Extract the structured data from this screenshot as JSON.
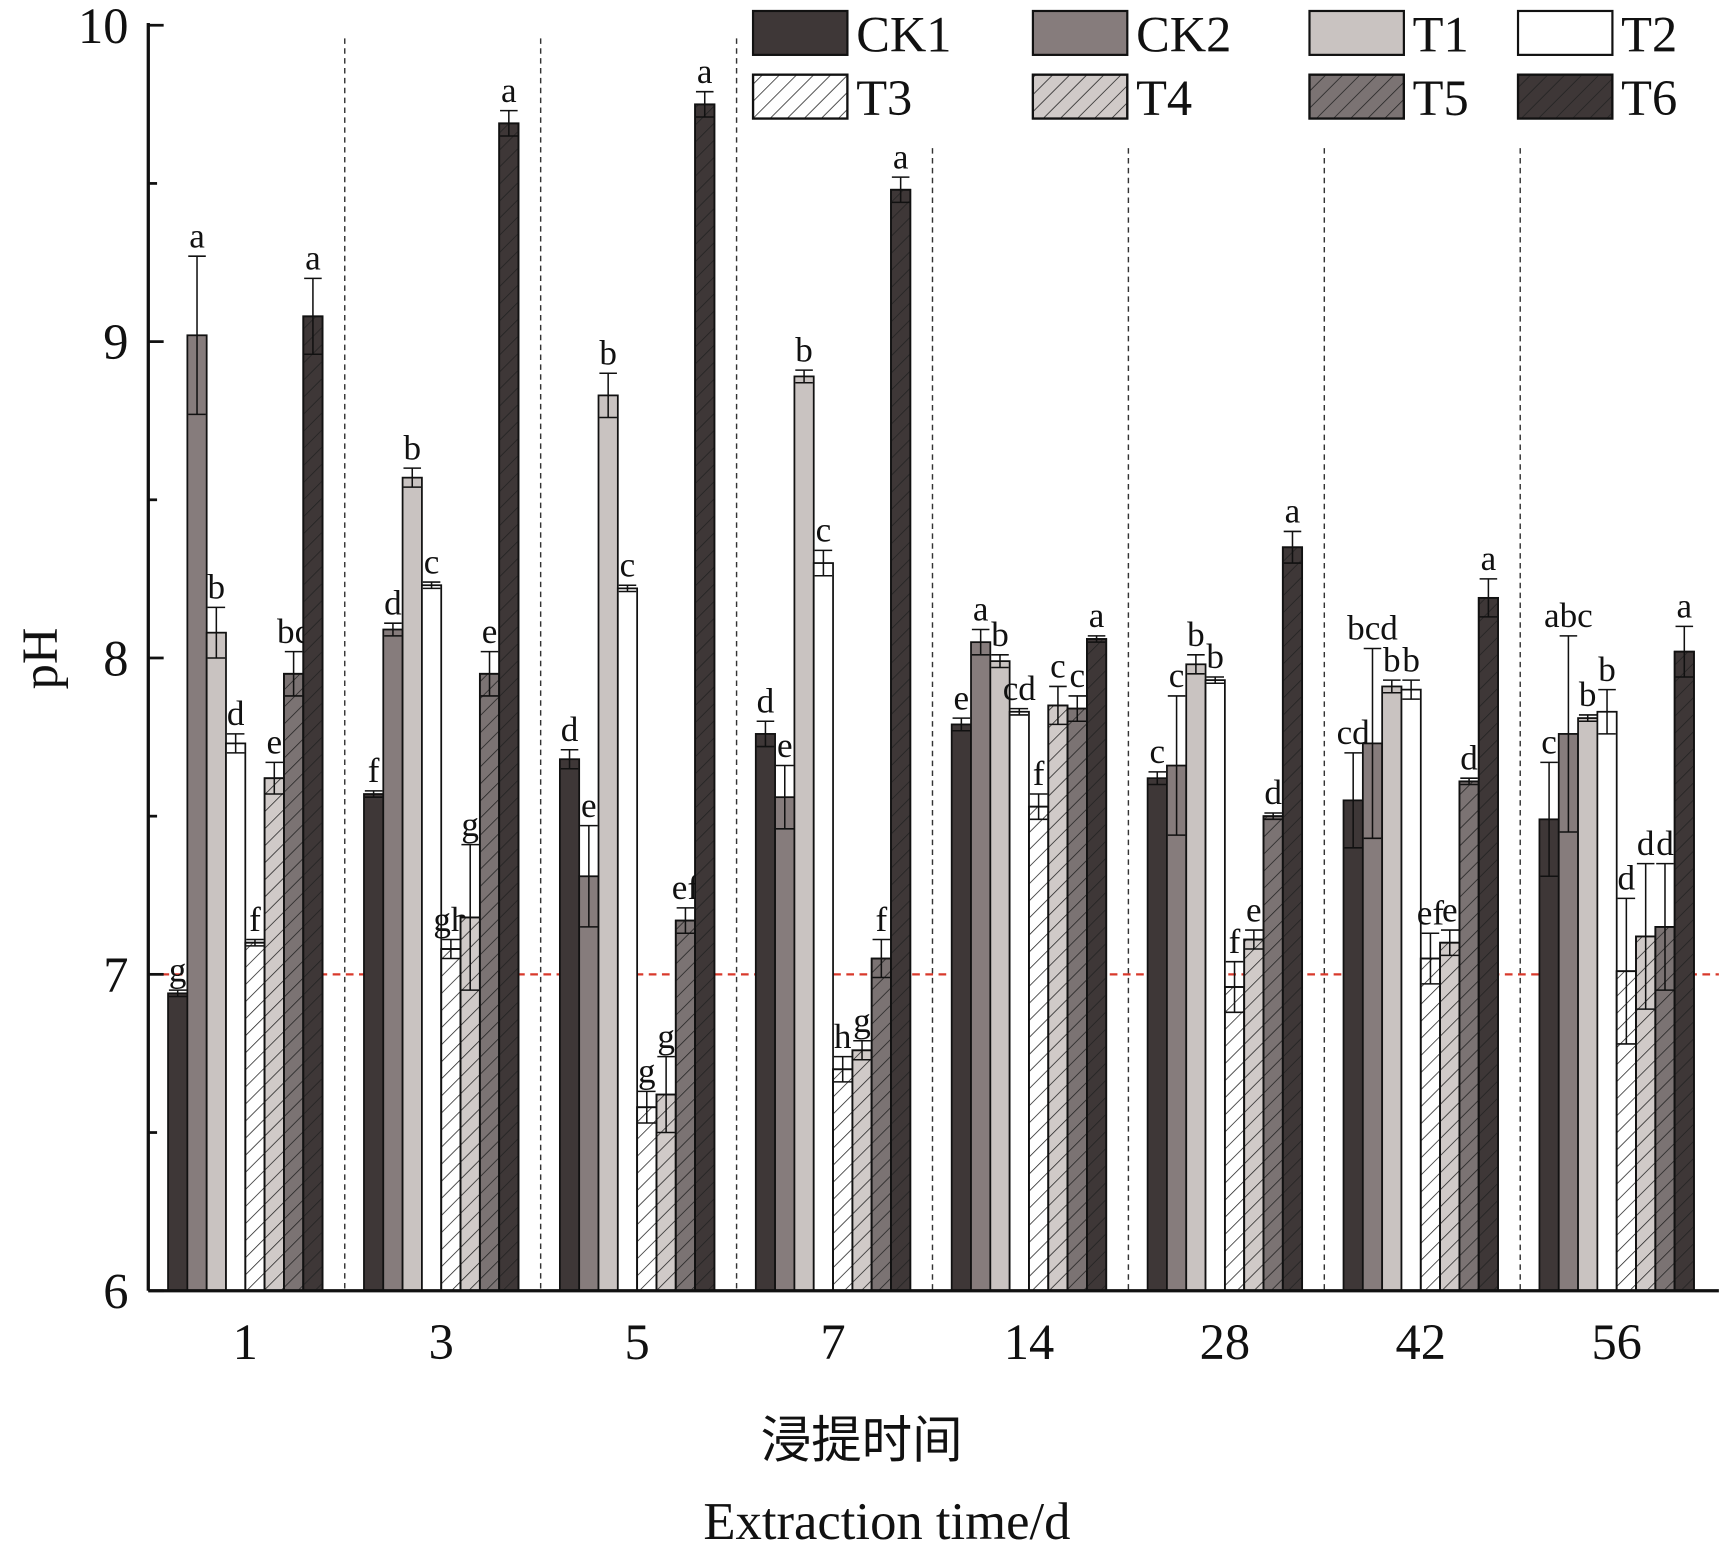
{
  "chart_data": {
    "type": "bar",
    "title": "",
    "ylabel": "pH",
    "xlabel_cn": "浸提时间",
    "xlabel": "Extraction time/d",
    "ylim": [
      6,
      10
    ],
    "yticks": [
      "6",
      "7",
      "8",
      "9",
      "10"
    ],
    "reference_line": 7,
    "legend_position": "top-right",
    "categories": [
      "1",
      "3",
      "5",
      "7",
      "14",
      "28",
      "42",
      "56"
    ],
    "series": [
      {
        "name": "CK1",
        "fill": "#3e3737",
        "hatch": false,
        "values": [
          6.94,
          7.57,
          7.68,
          7.76,
          7.79,
          7.62,
          7.55,
          7.49
        ],
        "errors": [
          0.01,
          0.01,
          0.03,
          0.04,
          0.02,
          0.02,
          0.15,
          0.18
        ],
        "letters": [
          "g",
          "f",
          "d",
          "d",
          "e",
          "c",
          "cd",
          "c"
        ]
      },
      {
        "name": "CK2",
        "fill": "#867c7c",
        "hatch": false,
        "values": [
          9.02,
          8.09,
          7.31,
          7.56,
          8.05,
          7.66,
          7.73,
          7.76
        ],
        "errors": [
          0.25,
          0.02,
          0.16,
          0.1,
          0.04,
          0.22,
          0.3,
          0.31
        ],
        "letters": [
          "a",
          "d",
          "e",
          "e",
          "a",
          "c",
          "bcd",
          "abc"
        ]
      },
      {
        "name": "T1",
        "fill": "#c9c3c1",
        "hatch": false,
        "values": [
          8.08,
          8.57,
          8.83,
          8.89,
          7.99,
          7.98,
          7.91,
          7.81
        ],
        "errors": [
          0.08,
          0.03,
          0.07,
          0.02,
          0.02,
          0.03,
          0.02,
          0.01
        ],
        "letters": [
          "b",
          "b",
          "b",
          "b",
          "b",
          "b",
          "b",
          "b"
        ]
      },
      {
        "name": "T2",
        "fill": "#ffffff",
        "hatch": false,
        "values": [
          7.73,
          8.23,
          8.22,
          8.3,
          7.83,
          7.93,
          7.9,
          7.83
        ],
        "errors": [
          0.03,
          0.01,
          0.01,
          0.04,
          0.01,
          0.01,
          0.03,
          0.07
        ],
        "letters": [
          "d",
          "c",
          "c",
          "c",
          "cd",
          "b",
          "b",
          "b"
        ]
      },
      {
        "name": "T3",
        "fill": "#ffffff",
        "hatch": true,
        "values": [
          7.1,
          7.08,
          6.58,
          6.7,
          7.53,
          6.96,
          7.05,
          7.01
        ],
        "errors": [
          0.01,
          0.03,
          0.05,
          0.04,
          0.04,
          0.08,
          0.08,
          0.23
        ],
        "letters": [
          "f",
          "gh",
          "g",
          "h",
          "f",
          "f",
          "ef",
          "d"
        ]
      },
      {
        "name": "T4",
        "fill": "#d0cac8",
        "hatch": true,
        "values": [
          7.62,
          7.18,
          6.62,
          6.76,
          7.85,
          7.11,
          7.1,
          7.12
        ],
        "errors": [
          0.05,
          0.23,
          0.12,
          0.03,
          0.06,
          0.03,
          0.04,
          0.23
        ],
        "letters": [
          "e",
          "g",
          "g",
          "g",
          "c",
          "e",
          "e",
          "d"
        ]
      },
      {
        "name": "T5",
        "fill": "#7b7373",
        "hatch": true,
        "values": [
          7.95,
          7.95,
          7.17,
          7.05,
          7.84,
          7.5,
          7.61,
          7.15
        ],
        "errors": [
          0.07,
          0.07,
          0.04,
          0.06,
          0.04,
          0.01,
          0.01,
          0.2
        ],
        "letters": [
          "bc",
          "e",
          "ef",
          "f",
          "c",
          "d",
          "d",
          "d"
        ]
      },
      {
        "name": "T6",
        "fill": "#3e3737",
        "hatch": true,
        "values": [
          9.08,
          9.69,
          9.75,
          9.48,
          8.06,
          8.35,
          8.19,
          8.02
        ],
        "errors": [
          0.12,
          0.04,
          0.04,
          0.04,
          0.01,
          0.05,
          0.06,
          0.08
        ],
        "letters": [
          "a",
          "a",
          "a",
          "a",
          "a",
          "a",
          "a",
          "a"
        ]
      }
    ]
  }
}
